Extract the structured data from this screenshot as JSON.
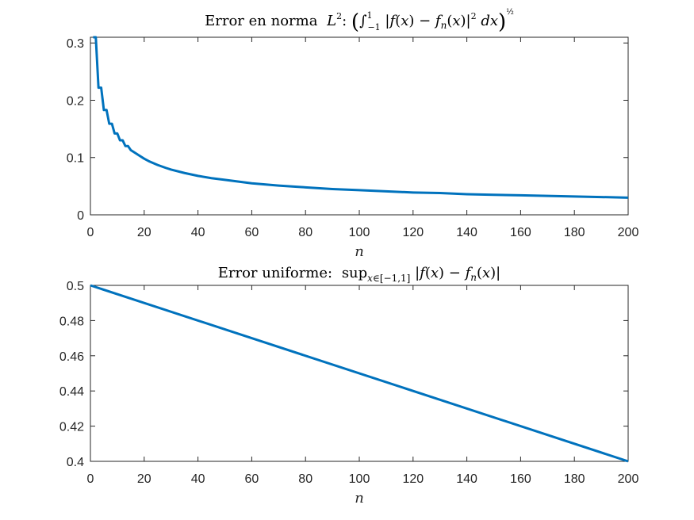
{
  "chart_data": [
    {
      "type": "line",
      "title_text": "Error en norma",
      "title_math": "L²: (∫₋₁¹ |f(x) − fₙ(x)|² dx)^½",
      "xlabel": "n",
      "ylabel": "",
      "xlim": [
        0,
        200
      ],
      "ylim": [
        0,
        0.31
      ],
      "xticks": [
        0,
        20,
        40,
        60,
        80,
        100,
        120,
        140,
        160,
        180,
        200
      ],
      "yticks": [
        0,
        0.1,
        0.2,
        0.3
      ],
      "ytick_labels": [
        "0",
        "0.1",
        "0.2",
        "0.3"
      ],
      "grid": false,
      "series": [
        {
          "color": "#0072BD",
          "x": [
            1,
            2,
            3,
            4,
            5,
            6,
            7,
            8,
            9,
            10,
            11,
            12,
            13,
            14,
            15,
            16,
            18,
            20,
            22,
            25,
            28,
            30,
            35,
            40,
            45,
            50,
            60,
            70,
            80,
            90,
            100,
            110,
            120,
            130,
            140,
            150,
            160,
            170,
            180,
            190,
            200
          ],
          "y": [
            0.31,
            0.31,
            0.222,
            0.222,
            0.183,
            0.183,
            0.159,
            0.159,
            0.142,
            0.142,
            0.13,
            0.13,
            0.12,
            0.12,
            0.113,
            0.11,
            0.104,
            0.098,
            0.093,
            0.087,
            0.082,
            0.079,
            0.073,
            0.068,
            0.064,
            0.061,
            0.055,
            0.051,
            0.048,
            0.045,
            0.043,
            0.041,
            0.039,
            0.038,
            0.036,
            0.035,
            0.034,
            0.033,
            0.032,
            0.031,
            0.03
          ]
        }
      ]
    },
    {
      "type": "line",
      "title_text": "Error uniforme:",
      "title_math": "sup x∈[−1,1] |f(x) − fₙ(x)|",
      "xlabel": "n",
      "ylabel": "",
      "xlim": [
        0,
        200
      ],
      "ylim": [
        0.4,
        0.5
      ],
      "xticks": [
        0,
        20,
        40,
        60,
        80,
        100,
        120,
        140,
        160,
        180,
        200
      ],
      "yticks": [
        0.4,
        0.42,
        0.44,
        0.46,
        0.48,
        0.5
      ],
      "ytick_labels": [
        "0.4",
        "0.42",
        "0.44",
        "0.46",
        "0.48",
        "0.5"
      ],
      "grid": false,
      "series": [
        {
          "color": "#0072BD",
          "x": [
            0,
            200
          ],
          "y": [
            0.5,
            0.4
          ]
        }
      ]
    }
  ]
}
